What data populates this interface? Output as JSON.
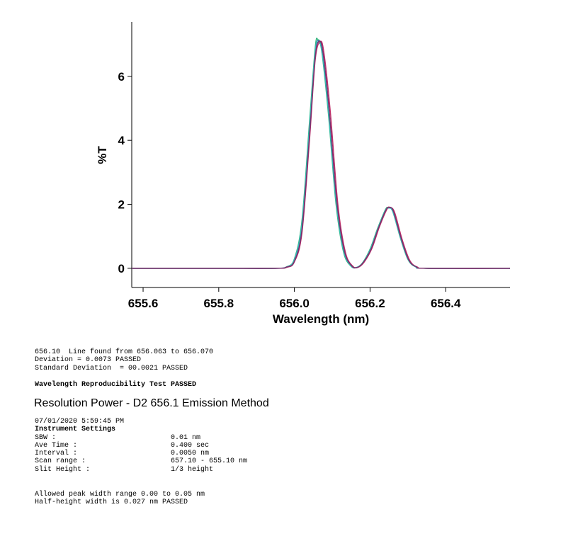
{
  "chart_data": {
    "type": "line",
    "xlabel": "Wavelength (nm)",
    "ylabel": "%T",
    "xlim": [
      655.57,
      656.57
    ],
    "ylim": [
      -0.6,
      7.7
    ],
    "x_ticks": [
      "655.6",
      "655.8",
      "656.0",
      "656.2",
      "656.4"
    ],
    "y_ticks": [
      "0",
      "2",
      "4",
      "6"
    ],
    "grid": false,
    "colors": [
      "#2e5fb0",
      "#2fb37a",
      "#38b8b8",
      "#c0306a",
      "#7a2f6e"
    ],
    "peaks": [
      {
        "center": 656.065,
        "height": 7.1
      },
      {
        "center": 656.249,
        "height": 1.9
      }
    ],
    "series": [
      {
        "color": "#2e5fb0",
        "shift": 0.0,
        "values": [
          [
            655.57,
            0
          ],
          [
            655.8,
            0
          ],
          [
            655.95,
            0
          ],
          [
            655.98,
            0.05
          ],
          [
            656.0,
            0.25
          ],
          [
            656.02,
            1.3
          ],
          [
            656.04,
            4.3
          ],
          [
            656.055,
            6.75
          ],
          [
            656.065,
            7.1
          ],
          [
            656.075,
            6.7
          ],
          [
            656.09,
            5.0
          ],
          [
            656.11,
            2.2
          ],
          [
            656.13,
            0.6
          ],
          [
            656.15,
            0.08
          ],
          [
            656.165,
            0.03
          ],
          [
            656.18,
            0.15
          ],
          [
            656.2,
            0.55
          ],
          [
            656.22,
            1.2
          ],
          [
            656.24,
            1.8
          ],
          [
            656.25,
            1.9
          ],
          [
            656.26,
            1.8
          ],
          [
            656.28,
            1.0
          ],
          [
            656.3,
            0.3
          ],
          [
            656.32,
            0.05
          ],
          [
            656.35,
            0
          ],
          [
            656.57,
            0
          ]
        ]
      },
      {
        "color": "#2fb37a",
        "shift": -0.003,
        "values": [
          [
            655.57,
            0
          ],
          [
            655.8,
            0
          ],
          [
            655.95,
            0
          ],
          [
            655.98,
            0.05
          ],
          [
            656.0,
            0.3
          ],
          [
            656.02,
            1.5
          ],
          [
            656.04,
            4.6
          ],
          [
            656.055,
            6.9
          ],
          [
            656.062,
            7.15
          ],
          [
            656.072,
            6.8
          ],
          [
            656.09,
            4.8
          ],
          [
            656.11,
            2.0
          ],
          [
            656.13,
            0.5
          ],
          [
            656.15,
            0.06
          ],
          [
            656.165,
            0.03
          ],
          [
            656.18,
            0.17
          ],
          [
            656.2,
            0.6
          ],
          [
            656.22,
            1.25
          ],
          [
            656.24,
            1.82
          ],
          [
            656.248,
            1.9
          ],
          [
            656.26,
            1.78
          ],
          [
            656.28,
            0.95
          ],
          [
            656.3,
            0.28
          ],
          [
            656.32,
            0.05
          ],
          [
            656.35,
            0
          ],
          [
            656.57,
            0
          ]
        ]
      },
      {
        "color": "#38b8b8",
        "shift": -0.002,
        "values": [
          [
            655.57,
            0
          ],
          [
            655.8,
            0
          ],
          [
            655.95,
            0
          ],
          [
            655.98,
            0.04
          ],
          [
            656.0,
            0.28
          ],
          [
            656.02,
            1.4
          ],
          [
            656.04,
            4.45
          ],
          [
            656.055,
            6.8
          ],
          [
            656.063,
            7.05
          ],
          [
            656.073,
            6.75
          ],
          [
            656.09,
            4.9
          ],
          [
            656.11,
            2.1
          ],
          [
            656.13,
            0.55
          ],
          [
            656.15,
            0.07
          ],
          [
            656.165,
            0.03
          ],
          [
            656.18,
            0.16
          ],
          [
            656.2,
            0.57
          ],
          [
            656.22,
            1.22
          ],
          [
            656.24,
            1.8
          ],
          [
            656.249,
            1.88
          ],
          [
            656.26,
            1.77
          ],
          [
            656.28,
            0.97
          ],
          [
            656.3,
            0.29
          ],
          [
            656.32,
            0.05
          ],
          [
            656.35,
            0
          ],
          [
            656.57,
            0
          ]
        ]
      },
      {
        "color": "#c0306a",
        "shift": 0.003,
        "values": [
          [
            655.57,
            0
          ],
          [
            655.8,
            0
          ],
          [
            655.95,
            0
          ],
          [
            655.98,
            0.03
          ],
          [
            656.0,
            0.2
          ],
          [
            656.02,
            1.1
          ],
          [
            656.04,
            4.0
          ],
          [
            656.055,
            6.5
          ],
          [
            656.068,
            7.08
          ],
          [
            656.078,
            6.75
          ],
          [
            656.095,
            4.9
          ],
          [
            656.115,
            2.0
          ],
          [
            656.135,
            0.5
          ],
          [
            656.155,
            0.06
          ],
          [
            656.17,
            0.04
          ],
          [
            656.185,
            0.2
          ],
          [
            656.205,
            0.62
          ],
          [
            656.225,
            1.3
          ],
          [
            656.245,
            1.85
          ],
          [
            656.253,
            1.9
          ],
          [
            656.265,
            1.75
          ],
          [
            656.285,
            0.9
          ],
          [
            656.305,
            0.25
          ],
          [
            656.325,
            0.04
          ],
          [
            656.355,
            0
          ],
          [
            656.57,
            0
          ]
        ]
      },
      {
        "color": "#7a2f6e",
        "shift": 0.001,
        "values": [
          [
            655.57,
            0
          ],
          [
            655.8,
            0
          ],
          [
            655.95,
            0
          ],
          [
            655.98,
            0.04
          ],
          [
            656.0,
            0.22
          ],
          [
            656.02,
            1.2
          ],
          [
            656.04,
            4.15
          ],
          [
            656.055,
            6.6
          ],
          [
            656.066,
            7.1
          ],
          [
            656.076,
            6.72
          ],
          [
            656.092,
            4.95
          ],
          [
            656.112,
            2.1
          ],
          [
            656.132,
            0.55
          ],
          [
            656.152,
            0.07
          ],
          [
            656.167,
            0.03
          ],
          [
            656.182,
            0.18
          ],
          [
            656.202,
            0.58
          ],
          [
            656.222,
            1.25
          ],
          [
            656.242,
            1.82
          ],
          [
            656.251,
            1.9
          ],
          [
            656.262,
            1.78
          ],
          [
            656.282,
            0.95
          ],
          [
            656.302,
            0.27
          ],
          [
            656.322,
            0.05
          ],
          [
            656.352,
            0
          ],
          [
            656.57,
            0
          ]
        ]
      }
    ]
  },
  "report": {
    "line1": "656.10  Line found from 656.063 to 656.070",
    "line2": "Deviation = 0.0073 PASSED",
    "line3": "Standard Deviation  = 00.0021 PASSED",
    "test_result": "Wavelength Reproducibility Test PASSED",
    "method_heading": "Resolution Power - D2 656.1 Emission Method",
    "timestamp": "07/01/2020 5:59:45 PM",
    "settings_title": "Instrument Settings",
    "settings": [
      {
        "key": "SBW :",
        "value": "0.01 nm"
      },
      {
        "key": "Ave Time :",
        "value": "0.400 sec"
      },
      {
        "key": "Interval :",
        "value": "0.0050 nm"
      },
      {
        "key": "Scan range :",
        "value": "657.10 - 655.10 nm"
      },
      {
        "key": "Slit Height :",
        "value": "1/3 height"
      }
    ],
    "allowed": "Allowed peak width range 0.00 to 0.05 nm",
    "halfheight": "Half-height width is 0.027 nm PASSED"
  }
}
